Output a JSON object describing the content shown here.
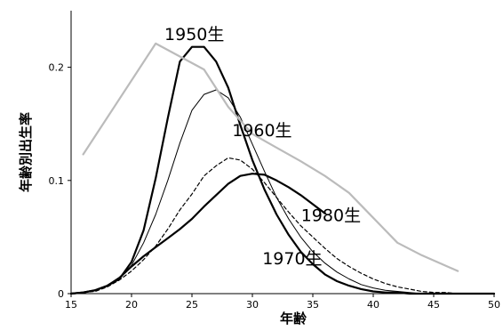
{
  "chart_data": {
    "type": "line",
    "xlabel": "年齢",
    "ylabel": "年齢別出生率",
    "xlim": [
      15,
      50
    ],
    "ylim": [
      0,
      0.25
    ],
    "x_ticks": [
      15,
      20,
      25,
      30,
      35,
      40,
      45,
      50
    ],
    "y_ticks": [
      0,
      0.1,
      0.2
    ],
    "y_tick_labels": [
      "0",
      "0.1",
      "0.2"
    ],
    "grid": false,
    "series": [
      {
        "name": "1950生",
        "color": "#000000",
        "stroke_style": "thick",
        "x": [
          15,
          16,
          17,
          18,
          19,
          20,
          21,
          22,
          23,
          24,
          25,
          26,
          27,
          28,
          29,
          30,
          31,
          32,
          33,
          34,
          35,
          36,
          37,
          38,
          39,
          40,
          41,
          42,
          43,
          44,
          45,
          46,
          47,
          48,
          49,
          50
        ],
        "y": [
          0,
          0.001,
          0.003,
          0.007,
          0.013,
          0.028,
          0.056,
          0.102,
          0.155,
          0.205,
          0.218,
          0.218,
          0.205,
          0.182,
          0.149,
          0.118,
          0.092,
          0.07,
          0.052,
          0.037,
          0.026,
          0.017,
          0.011,
          0.007,
          0.004,
          0.002,
          0.001,
          0.001,
          0,
          0,
          0,
          0,
          0,
          0,
          0,
          0
        ]
      },
      {
        "name": "1960生",
        "color": "#000000",
        "stroke_style": "thin",
        "x": [
          15,
          16,
          17,
          18,
          19,
          20,
          21,
          22,
          23,
          24,
          25,
          26,
          27,
          28,
          29,
          30,
          31,
          32,
          33,
          34,
          35,
          36,
          37,
          38,
          39,
          40,
          41,
          42,
          43,
          44,
          45,
          46,
          47,
          48,
          49,
          50
        ],
        "y": [
          0,
          0.001,
          0.003,
          0.007,
          0.013,
          0.025,
          0.045,
          0.07,
          0.1,
          0.133,
          0.162,
          0.176,
          0.18,
          0.173,
          0.156,
          0.132,
          0.108,
          0.085,
          0.066,
          0.05,
          0.037,
          0.027,
          0.019,
          0.013,
          0.008,
          0.005,
          0.003,
          0.002,
          0.001,
          0,
          0,
          0,
          0,
          0,
          0,
          0
        ]
      },
      {
        "name": "1970生",
        "color": "#000000",
        "stroke_style": "dashed",
        "x": [
          15,
          16,
          17,
          18,
          19,
          20,
          21,
          22,
          23,
          24,
          25,
          26,
          27,
          28,
          29,
          30,
          31,
          32,
          33,
          34,
          35,
          36,
          37,
          38,
          39,
          40,
          41,
          42,
          43,
          44,
          45,
          46,
          47,
          48,
          49,
          50
        ],
        "y": [
          0,
          0.001,
          0.002,
          0.006,
          0.012,
          0.02,
          0.03,
          0.042,
          0.057,
          0.074,
          0.088,
          0.104,
          0.113,
          0.12,
          0.118,
          0.11,
          0.098,
          0.085,
          0.072,
          0.06,
          0.05,
          0.04,
          0.031,
          0.024,
          0.018,
          0.013,
          0.009,
          0.006,
          0.004,
          0.002,
          0.001,
          0.001,
          0,
          0,
          0,
          0
        ]
      },
      {
        "name": "1980生",
        "color": "#000000",
        "stroke_style": "thick",
        "x": [
          15,
          16,
          17,
          18,
          19,
          20,
          21,
          22,
          23,
          24,
          25,
          26,
          27,
          28,
          29,
          30,
          31,
          32,
          33,
          34,
          35,
          36
        ],
        "y": [
          0,
          0.001,
          0.003,
          0.007,
          0.014,
          0.024,
          0.033,
          0.041,
          0.049,
          0.057,
          0.066,
          0.077,
          0.087,
          0.097,
          0.104,
          0.106,
          0.105,
          0.1,
          0.094,
          0.087,
          0.079,
          0.071
        ]
      },
      {
        "name": "",
        "color": "#bbbbbb",
        "stroke_style": "thick",
        "x": [
          16,
          22,
          26,
          28,
          30,
          32,
          34,
          36,
          38,
          40,
          42,
          44,
          47
        ],
        "y": [
          0.123,
          0.221,
          0.198,
          0.165,
          0.141,
          0.129,
          0.117,
          0.104,
          0.089,
          0.067,
          0.045,
          0.034,
          0.02
        ]
      }
    ],
    "annotations": [
      {
        "text": "1950生",
        "x": 25.2,
        "y": 0.224
      },
      {
        "text": "1960生",
        "x": 30.8,
        "y": 0.139
      },
      {
        "text": "1980生",
        "x": 36.5,
        "y": 0.064
      },
      {
        "text": "1970生",
        "x": 33.3,
        "y": 0.026
      }
    ]
  }
}
